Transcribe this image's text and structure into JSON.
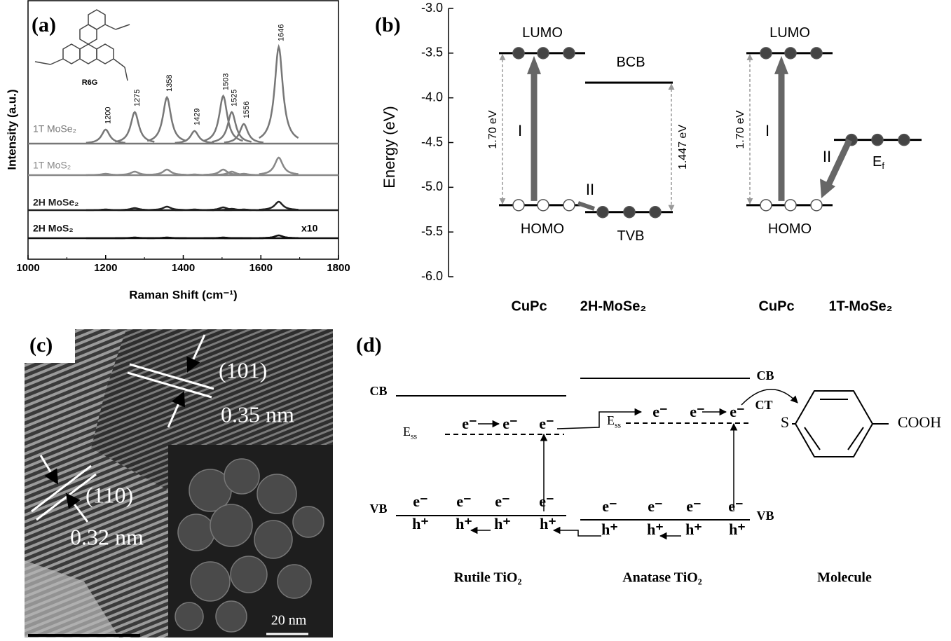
{
  "panel_a": {
    "label": "(a)",
    "ylabel": "Intensity (a.u.)",
    "xlabel": "Raman Shift (cm⁻¹)",
    "molecule": "R6G",
    "xlim": [
      1000,
      1800
    ],
    "xticks": [
      1000,
      1200,
      1400,
      1600,
      1800
    ],
    "peaks": [
      1200,
      1275,
      1358,
      1429,
      1503,
      1525,
      1556,
      1646
    ],
    "spectra": [
      {
        "name": "1T MoSe₂",
        "color": "#777777",
        "peak_heights": [
          20,
          45,
          66,
          18,
          68,
          45,
          28,
          138
        ]
      },
      {
        "name": "1T MoS₂",
        "color": "#888888",
        "peak_heights": [
          2,
          5,
          8,
          1,
          8,
          5,
          2,
          25
        ]
      },
      {
        "name": "2H MoSe₂",
        "color": "#222222",
        "peak_heights": [
          1,
          3,
          5,
          1,
          4,
          2,
          1,
          12
        ]
      },
      {
        "name": "2H MoS₂",
        "color": "#111111",
        "peak_heights": [
          0,
          1,
          1,
          0,
          1,
          0,
          0,
          4
        ]
      }
    ],
    "scale_note": "x10"
  },
  "panel_b": {
    "label": "(b)",
    "ylabel": "Energy (eV)",
    "ylim": [
      -6,
      -3
    ],
    "yticks": [
      {
        "value": -3,
        "label": "-3.0"
      },
      -3.5,
      {
        "value": -4,
        "label": "-4.0"
      },
      -4.5,
      {
        "value": -5,
        "label": "-5.0"
      },
      -5.5,
      {
        "value": -6,
        "label": "-6.0"
      }
    ],
    "left": {
      "donor": "CuPc",
      "acceptor": "2H-MoSe₂",
      "lumo": {
        "label": "LUMO",
        "value": -3.5
      },
      "homo": {
        "label": "HOMO",
        "value": -5.2
      },
      "cb": {
        "label": "BCB",
        "value": -3.83
      },
      "vb": {
        "label": "TVB",
        "value": -5.277
      },
      "gap_donor": "1.70 eV",
      "gap_acceptor": "1.447 eV",
      "path1": "I",
      "path2": "II"
    },
    "right": {
      "donor": "CuPc",
      "acceptor": "1T-MoSe₂",
      "lumo": {
        "label": "LUMO",
        "value": -3.5
      },
      "homo": {
        "label": "HOMO",
        "value": -5.2
      },
      "fermi": {
        "label": "E",
        "sub": "f",
        "value": -4.47
      },
      "gap_donor": "1.70 eV",
      "path1": "I",
      "path2": "II"
    }
  },
  "panel_c": {
    "label": "(c)",
    "plane1": "(101)",
    "spacing1": "0.35 nm",
    "plane2": "(110)",
    "spacing2": "0.32 nm",
    "scale_bar": "20 nm"
  },
  "panel_d": {
    "label": "(d)",
    "cb": "CB",
    "vb": "VB",
    "ess": "E",
    "ess_sub": "ss",
    "electron": "e⁻",
    "hole": "h⁺",
    "ct": "CT",
    "thiol": "S",
    "acid": "COOH",
    "rutile": "Rutile TiO₂",
    "anatase": "Anatase TiO₂",
    "molecule": "Molecule"
  }
}
